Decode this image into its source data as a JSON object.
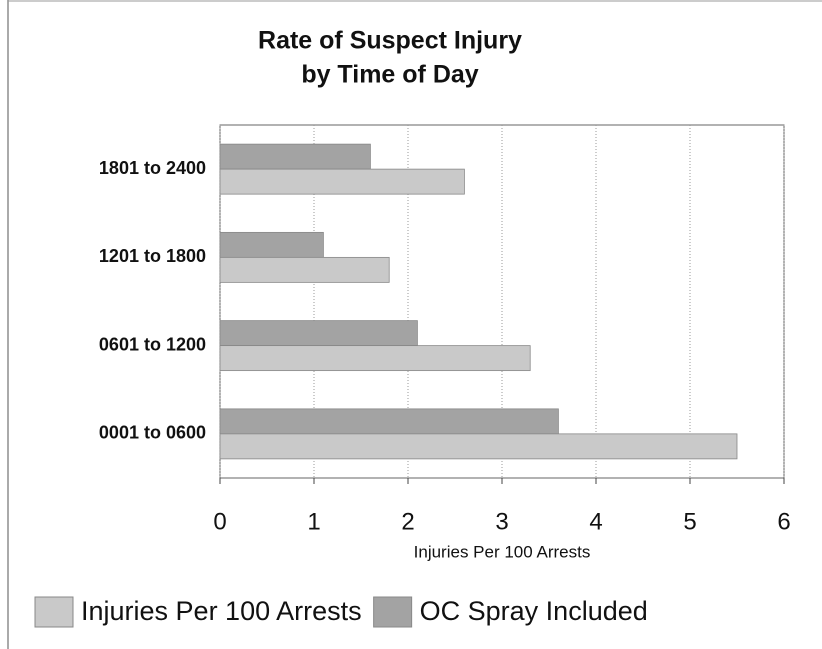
{
  "chart_data": {
    "type": "barh",
    "title": [
      "Rate of Suspect Injury",
      "by Time of Day"
    ],
    "categories": [
      "1801 to 2400",
      "1201 to 1800",
      "0601 to 1200",
      "0001 to 0600"
    ],
    "series": [
      {
        "name": "Injuries Per 100 Arrests",
        "color": "#c9c9c9",
        "values": [
          2.6,
          1.8,
          3.3,
          5.5
        ]
      },
      {
        "name": "OC Spray Included",
        "color": "#a3a3a3",
        "values": [
          1.6,
          1.1,
          2.1,
          3.6
        ]
      }
    ],
    "xlabel": "Injuries Per 100 Arrests",
    "xlim": [
      0,
      6
    ],
    "xticks": [
      0,
      1,
      2,
      3,
      4,
      5,
      6
    ],
    "grid": true,
    "legend": "bottom"
  }
}
